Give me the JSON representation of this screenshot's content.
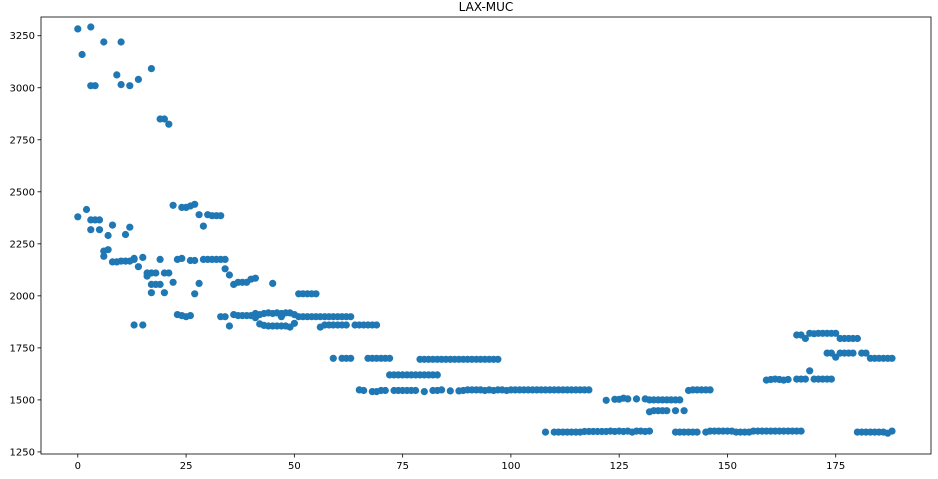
{
  "chart_data": {
    "type": "scatter",
    "title": "LAX-MUC",
    "xlabel": "",
    "ylabel": "",
    "xlim": [
      -8.5,
      197
    ],
    "ylim": [
      1240,
      3340
    ],
    "xticks": [
      0,
      25,
      50,
      75,
      100,
      125,
      150,
      175
    ],
    "yticks": [
      1250,
      1500,
      1750,
      2000,
      2250,
      2500,
      2750,
      3000,
      3250
    ],
    "grid": false,
    "marker_color": "#1f77b4",
    "points": [
      [
        0,
        3283
      ],
      [
        0,
        2380
      ],
      [
        1,
        3160
      ],
      [
        2,
        2415
      ],
      [
        3,
        3292
      ],
      [
        3,
        3010
      ],
      [
        3,
        2365
      ],
      [
        3,
        2318
      ],
      [
        4,
        3010
      ],
      [
        4,
        2365
      ],
      [
        5,
        2318
      ],
      [
        5,
        2365
      ],
      [
        6,
        3220
      ],
      [
        6,
        2190
      ],
      [
        6,
        2215
      ],
      [
        7,
        2222
      ],
      [
        7,
        2290
      ],
      [
        8,
        2163
      ],
      [
        8,
        2340
      ],
      [
        9,
        3062
      ],
      [
        9,
        2163
      ],
      [
        10,
        3220
      ],
      [
        10,
        3015
      ],
      [
        10,
        2167
      ],
      [
        11,
        2167
      ],
      [
        11,
        2295
      ],
      [
        12,
        3010
      ],
      [
        12,
        2330
      ],
      [
        12,
        2167
      ],
      [
        13,
        2175
      ],
      [
        13,
        1860
      ],
      [
        13,
        2180
      ],
      [
        14,
        3040
      ],
      [
        14,
        2140
      ],
      [
        15,
        1860
      ],
      [
        15,
        2185
      ],
      [
        16,
        2095
      ],
      [
        16,
        2110
      ],
      [
        17,
        3092
      ],
      [
        17,
        2015
      ],
      [
        17,
        2055
      ],
      [
        17,
        2110
      ],
      [
        18,
        2055
      ],
      [
        18,
        2110
      ],
      [
        19,
        2850
      ],
      [
        19,
        2175
      ],
      [
        19,
        2055
      ],
      [
        20,
        2850
      ],
      [
        20,
        2015
      ],
      [
        20,
        2110
      ],
      [
        21,
        2825
      ],
      [
        21,
        2110
      ],
      [
        22,
        2435
      ],
      [
        22,
        2065
      ],
      [
        23,
        1910
      ],
      [
        23,
        2175
      ],
      [
        24,
        2425
      ],
      [
        24,
        2180
      ],
      [
        24,
        1905
      ],
      [
        25,
        2425
      ],
      [
        25,
        1900
      ],
      [
        26,
        2432
      ],
      [
        26,
        1905
      ],
      [
        26,
        2170
      ],
      [
        27,
        2440
      ],
      [
        27,
        2010
      ],
      [
        27,
        2170
      ],
      [
        28,
        2390
      ],
      [
        28,
        2060
      ],
      [
        29,
        2335
      ],
      [
        29,
        2175
      ],
      [
        30,
        2390
      ],
      [
        30,
        2175
      ],
      [
        31,
        2385
      ],
      [
        31,
        2175
      ],
      [
        32,
        2385
      ],
      [
        32,
        2175
      ],
      [
        33,
        2385
      ],
      [
        33,
        1900
      ],
      [
        33,
        2175
      ],
      [
        34,
        1900
      ],
      [
        34,
        2130
      ],
      [
        34,
        2175
      ],
      [
        35,
        1855
      ],
      [
        35,
        2100
      ],
      [
        36,
        1910
      ],
      [
        36,
        2055
      ],
      [
        37,
        2065
      ],
      [
        37,
        1905
      ],
      [
        38,
        2065
      ],
      [
        38,
        1905
      ],
      [
        39,
        2065
      ],
      [
        39,
        1905
      ],
      [
        40,
        2080
      ],
      [
        40,
        1905
      ],
      [
        41,
        2085
      ],
      [
        41,
        1915
      ],
      [
        41,
        1895
      ],
      [
        42,
        1910
      ],
      [
        42,
        1865
      ],
      [
        43,
        1915
      ],
      [
        43,
        1858
      ],
      [
        44,
        1918
      ],
      [
        44,
        1855
      ],
      [
        45,
        2060
      ],
      [
        45,
        1915
      ],
      [
        45,
        1855
      ],
      [
        46,
        1918
      ],
      [
        46,
        1855
      ],
      [
        47,
        1915
      ],
      [
        47,
        1900
      ],
      [
        47,
        1855
      ],
      [
        48,
        1918
      ],
      [
        48,
        1855
      ],
      [
        49,
        1918
      ],
      [
        49,
        1850
      ],
      [
        50,
        1868
      ],
      [
        50,
        1910
      ],
      [
        51,
        2010
      ],
      [
        51,
        1900
      ],
      [
        52,
        2010
      ],
      [
        52,
        1900
      ],
      [
        53,
        2010
      ],
      [
        53,
        1900
      ],
      [
        54,
        2010
      ],
      [
        54,
        1900
      ],
      [
        55,
        2010
      ],
      [
        55,
        1900
      ],
      [
        56,
        1850
      ],
      [
        56,
        1900
      ],
      [
        57,
        1860
      ],
      [
        57,
        1900
      ],
      [
        58,
        1860
      ],
      [
        58,
        1900
      ],
      [
        59,
        1700
      ],
      [
        59,
        1860
      ],
      [
        59,
        1900
      ],
      [
        60,
        1860
      ],
      [
        60,
        1900
      ],
      [
        61,
        1700
      ],
      [
        61,
        1860
      ],
      [
        61,
        1900
      ],
      [
        62,
        1700
      ],
      [
        62,
        1860
      ],
      [
        62,
        1900
      ],
      [
        63,
        1700
      ],
      [
        63,
        1900
      ],
      [
        64,
        1860
      ],
      [
        65,
        1548
      ],
      [
        65,
        1860
      ],
      [
        66,
        1545
      ],
      [
        66,
        1860
      ],
      [
        67,
        1700
      ],
      [
        67,
        1860
      ],
      [
        68,
        1700
      ],
      [
        68,
        1540
      ],
      [
        68,
        1860
      ],
      [
        69,
        1700
      ],
      [
        69,
        1540
      ],
      [
        69,
        1860
      ],
      [
        70,
        1700
      ],
      [
        70,
        1545
      ],
      [
        71,
        1700
      ],
      [
        71,
        1545
      ],
      [
        72,
        1700
      ],
      [
        72,
        1620
      ],
      [
        73,
        1620
      ],
      [
        73,
        1545
      ],
      [
        74,
        1620
      ],
      [
        74,
        1545
      ],
      [
        75,
        1620
      ],
      [
        75,
        1545
      ],
      [
        76,
        1620
      ],
      [
        76,
        1545
      ],
      [
        77,
        1620
      ],
      [
        77,
        1545
      ],
      [
        78,
        1620
      ],
      [
        78,
        1545
      ],
      [
        79,
        1695
      ],
      [
        79,
        1620
      ],
      [
        80,
        1695
      ],
      [
        80,
        1620
      ],
      [
        80,
        1540
      ],
      [
        81,
        1695
      ],
      [
        81,
        1620
      ],
      [
        82,
        1695
      ],
      [
        82,
        1620
      ],
      [
        82,
        1545
      ],
      [
        83,
        1695
      ],
      [
        83,
        1620
      ],
      [
        83,
        1545
      ],
      [
        84,
        1695
      ],
      [
        84,
        1548
      ],
      [
        85,
        1695
      ],
      [
        86,
        1695
      ],
      [
        86,
        1543
      ],
      [
        87,
        1695
      ],
      [
        88,
        1695
      ],
      [
        88,
        1543
      ],
      [
        89,
        1695
      ],
      [
        89,
        1545
      ],
      [
        90,
        1695
      ],
      [
        90,
        1548
      ],
      [
        91,
        1695
      ],
      [
        91,
        1548
      ],
      [
        92,
        1695
      ],
      [
        92,
        1548
      ],
      [
        93,
        1695
      ],
      [
        93,
        1548
      ],
      [
        94,
        1695
      ],
      [
        94,
        1545
      ],
      [
        95,
        1695
      ],
      [
        95,
        1548
      ],
      [
        96,
        1695
      ],
      [
        96,
        1545
      ],
      [
        97,
        1695
      ],
      [
        97,
        1548
      ],
      [
        98,
        1548
      ],
      [
        99,
        1545
      ],
      [
        100,
        1548
      ],
      [
        101,
        1548
      ],
      [
        102,
        1548
      ],
      [
        103,
        1548
      ],
      [
        104,
        1548
      ],
      [
        105,
        1548
      ],
      [
        106,
        1548
      ],
      [
        107,
        1548
      ],
      [
        108,
        1345
      ],
      [
        108,
        1548
      ],
      [
        109,
        1548
      ],
      [
        110,
        1345
      ],
      [
        110,
        1548
      ],
      [
        111,
        1345
      ],
      [
        111,
        1548
      ],
      [
        112,
        1345
      ],
      [
        112,
        1548
      ],
      [
        113,
        1345
      ],
      [
        113,
        1548
      ],
      [
        114,
        1345
      ],
      [
        114,
        1548
      ],
      [
        115,
        1345
      ],
      [
        115,
        1548
      ],
      [
        116,
        1345
      ],
      [
        116,
        1548
      ],
      [
        117,
        1348
      ],
      [
        117,
        1548
      ],
      [
        118,
        1348
      ],
      [
        118,
        1548
      ],
      [
        119,
        1348
      ],
      [
        120,
        1348
      ],
      [
        121,
        1348
      ],
      [
        122,
        1348
      ],
      [
        122,
        1498
      ],
      [
        123,
        1350
      ],
      [
        124,
        1348
      ],
      [
        124,
        1503
      ],
      [
        125,
        1350
      ],
      [
        125,
        1503
      ],
      [
        126,
        1348
      ],
      [
        126,
        1508
      ],
      [
        127,
        1350
      ],
      [
        127,
        1505
      ],
      [
        128,
        1345
      ],
      [
        129,
        1350
      ],
      [
        129,
        1505
      ],
      [
        130,
        1350
      ],
      [
        131,
        1348
      ],
      [
        131,
        1505
      ],
      [
        132,
        1350
      ],
      [
        132,
        1443
      ],
      [
        132,
        1500
      ],
      [
        133,
        1448
      ],
      [
        133,
        1500
      ],
      [
        134,
        1448
      ],
      [
        134,
        1500
      ],
      [
        135,
        1448
      ],
      [
        135,
        1500
      ],
      [
        136,
        1448
      ],
      [
        136,
        1500
      ],
      [
        137,
        1500
      ],
      [
        138,
        1345
      ],
      [
        138,
        1500
      ],
      [
        138,
        1448
      ],
      [
        139,
        1345
      ],
      [
        139,
        1500
      ],
      [
        140,
        1345
      ],
      [
        140,
        1448
      ],
      [
        141,
        1345
      ],
      [
        141,
        1545
      ],
      [
        142,
        1345
      ],
      [
        142,
        1548
      ],
      [
        143,
        1345
      ],
      [
        143,
        1548
      ],
      [
        144,
        1548
      ],
      [
        145,
        1345
      ],
      [
        145,
        1548
      ],
      [
        146,
        1350
      ],
      [
        146,
        1548
      ],
      [
        147,
        1350
      ],
      [
        148,
        1350
      ],
      [
        149,
        1350
      ],
      [
        150,
        1350
      ],
      [
        151,
        1350
      ],
      [
        152,
        1345
      ],
      [
        153,
        1345
      ],
      [
        154,
        1345
      ],
      [
        155,
        1345
      ],
      [
        156,
        1350
      ],
      [
        157,
        1350
      ],
      [
        158,
        1350
      ],
      [
        159,
        1350
      ],
      [
        159,
        1595
      ],
      [
        160,
        1350
      ],
      [
        160,
        1598
      ],
      [
        161,
        1350
      ],
      [
        161,
        1600
      ],
      [
        162,
        1350
      ],
      [
        162,
        1598
      ],
      [
        163,
        1350
      ],
      [
        163,
        1595
      ],
      [
        164,
        1350
      ],
      [
        164,
        1598
      ],
      [
        165,
        1350
      ],
      [
        166,
        1350
      ],
      [
        166,
        1812
      ],
      [
        166,
        1600
      ],
      [
        167,
        1350
      ],
      [
        167,
        1812
      ],
      [
        167,
        1600
      ],
      [
        168,
        1795
      ],
      [
        168,
        1600
      ],
      [
        169,
        1820
      ],
      [
        169,
        1640
      ],
      [
        170,
        1818
      ],
      [
        170,
        1600
      ],
      [
        171,
        1820
      ],
      [
        171,
        1600
      ],
      [
        172,
        1820
      ],
      [
        172,
        1600
      ],
      [
        173,
        1820
      ],
      [
        173,
        1725
      ],
      [
        173,
        1600
      ],
      [
        174,
        1820
      ],
      [
        174,
        1725
      ],
      [
        174,
        1600
      ],
      [
        175,
        1820
      ],
      [
        175,
        1705
      ],
      [
        176,
        1795
      ],
      [
        176,
        1725
      ],
      [
        177,
        1795
      ],
      [
        177,
        1725
      ],
      [
        178,
        1795
      ],
      [
        178,
        1725
      ],
      [
        179,
        1795
      ],
      [
        179,
        1725
      ],
      [
        180,
        1345
      ],
      [
        180,
        1795
      ],
      [
        181,
        1345
      ],
      [
        181,
        1725
      ],
      [
        182,
        1345
      ],
      [
        182,
        1725
      ],
      [
        183,
        1345
      ],
      [
        183,
        1700
      ],
      [
        184,
        1345
      ],
      [
        184,
        1700
      ],
      [
        185,
        1345
      ],
      [
        185,
        1700
      ],
      [
        186,
        1345
      ],
      [
        186,
        1700
      ],
      [
        187,
        1340
      ],
      [
        187,
        1700
      ],
      [
        188,
        1350
      ],
      [
        188,
        1700
      ]
    ]
  }
}
